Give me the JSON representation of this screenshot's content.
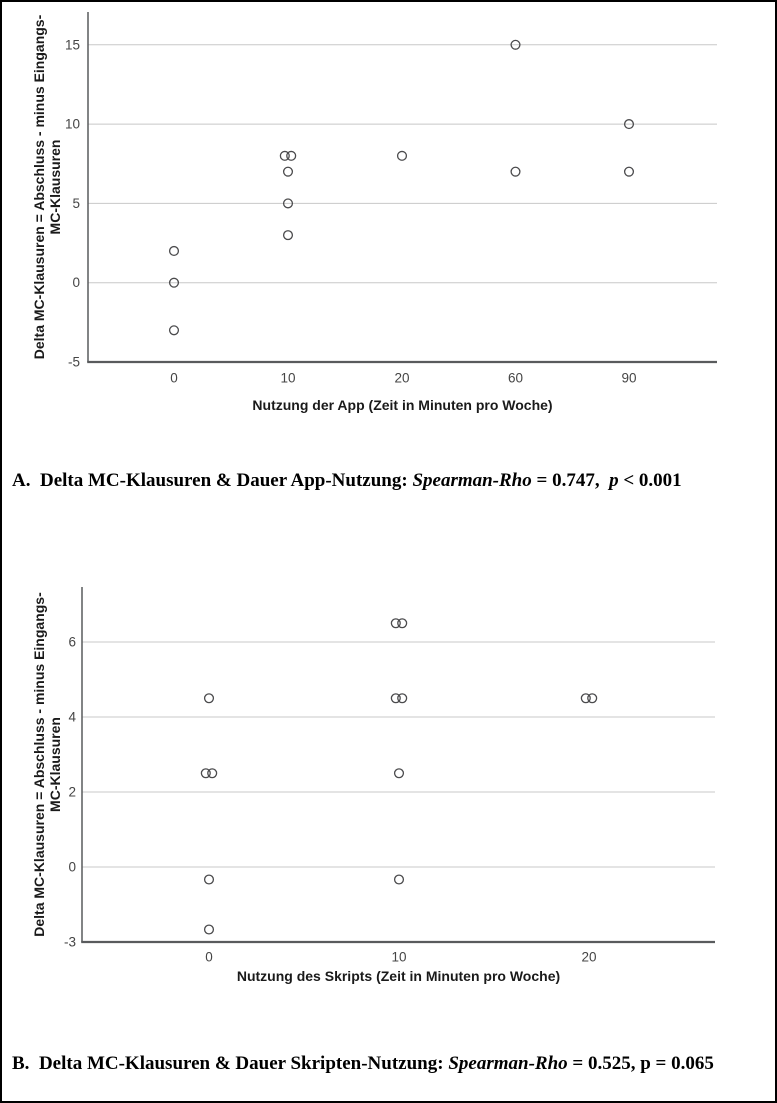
{
  "page": {
    "background": "#ffffff",
    "border": "#000000"
  },
  "colors": {
    "gridline": "#c8c8c8",
    "axis": "#595b5d",
    "marker_stroke": "#4b4b4d",
    "tick_label": "#454545",
    "axis_title": "#1a1a1a",
    "caption_text": "#000000"
  },
  "chart_data": [
    {
      "id": "A",
      "type": "scatter",
      "title": "",
      "xlabel": "Nutzung der App (Zeit in Minuten pro Woche)",
      "ylabel_lines": [
        "Delta MC-Klausuren = Abschluss - minus Eingangs-",
        "MC-Klausuren"
      ],
      "x_categories": [
        "0",
        "10",
        "20",
        "60",
        "90"
      ],
      "y_ticks": [
        -5,
        0,
        5,
        10,
        15
      ],
      "ylim": [
        -5,
        17
      ],
      "grid": "horizontal-only",
      "legend": "none",
      "marker": "open-circle",
      "points": [
        {
          "x": "0",
          "y": 2
        },
        {
          "x": "0",
          "y": 0
        },
        {
          "x": "0",
          "y": -3
        },
        {
          "x": "10",
          "y": 8,
          "count": 2
        },
        {
          "x": "10",
          "y": 7
        },
        {
          "x": "10",
          "y": 5
        },
        {
          "x": "10",
          "y": 3
        },
        {
          "x": "20",
          "y": 8
        },
        {
          "x": "60",
          "y": 15
        },
        {
          "x": "60",
          "y": 7
        },
        {
          "x": "90",
          "y": 10
        },
        {
          "x": "90",
          "y": 7
        }
      ]
    },
    {
      "id": "B",
      "type": "scatter",
      "title": "",
      "xlabel": "Nutzung des Skripts (Zeit in Minuten pro Woche)",
      "ylabel_lines": [
        "Delta MC-Klausuren = Abschluss - minus Eingangs-",
        "MC-Klausuren"
      ],
      "x_categories": [
        "0",
        "10",
        "20"
      ],
      "y_ticks": [
        -3,
        0,
        2,
        4,
        6
      ],
      "ylim": [
        -3,
        7
      ],
      "grid": "horizontal-only",
      "legend": "none",
      "marker": "open-circle",
      "points": [
        {
          "x": "0",
          "y": 4.5
        },
        {
          "x": "0",
          "y": 2.5,
          "count": 2
        },
        {
          "x": "0",
          "y": -0.5
        },
        {
          "x": "0",
          "y": -2.5
        },
        {
          "x": "10",
          "y": 6.5,
          "count": 2
        },
        {
          "x": "10",
          "y": 4.5,
          "count": 2
        },
        {
          "x": "10",
          "y": 2.5
        },
        {
          "x": "10",
          "y": -0.5
        },
        {
          "x": "20",
          "y": 4.5,
          "count": 2
        }
      ]
    }
  ],
  "captions": {
    "a": {
      "text": "A.  Delta MC-Klausuren & Dauer App-Nutzung: Spearman-Rho = 0.747,  p < 0.001",
      "spearman_rho": "0.747",
      "p_value": "< 0.001",
      "segments": [
        {
          "t": "A.",
          "i": false
        },
        {
          "t": "  Delta MC-Klausuren & Dauer App-Nutzung: ",
          "i": false
        },
        {
          "t": "Spearman-Rho",
          "i": true
        },
        {
          "t": " = 0.747,  ",
          "i": false
        },
        {
          "t": "p",
          "i": true
        },
        {
          "t": " < 0.001",
          "i": false
        }
      ]
    },
    "b": {
      "text": "B.  Delta MC-Klausuren & Dauer Skripten-Nutzung: Spearman-Rho = 0.525, p = 0.065",
      "spearman_rho": "0.525",
      "p_value": "0.065",
      "segments": [
        {
          "t": "B.",
          "i": false
        },
        {
          "t": "  Delta MC-Klausuren & Dauer Skripten-Nutzung: ",
          "i": false
        },
        {
          "t": "Spearman-Rho",
          "i": true
        },
        {
          "t": " = 0.525, p = 0.065",
          "i": false
        }
      ]
    }
  }
}
